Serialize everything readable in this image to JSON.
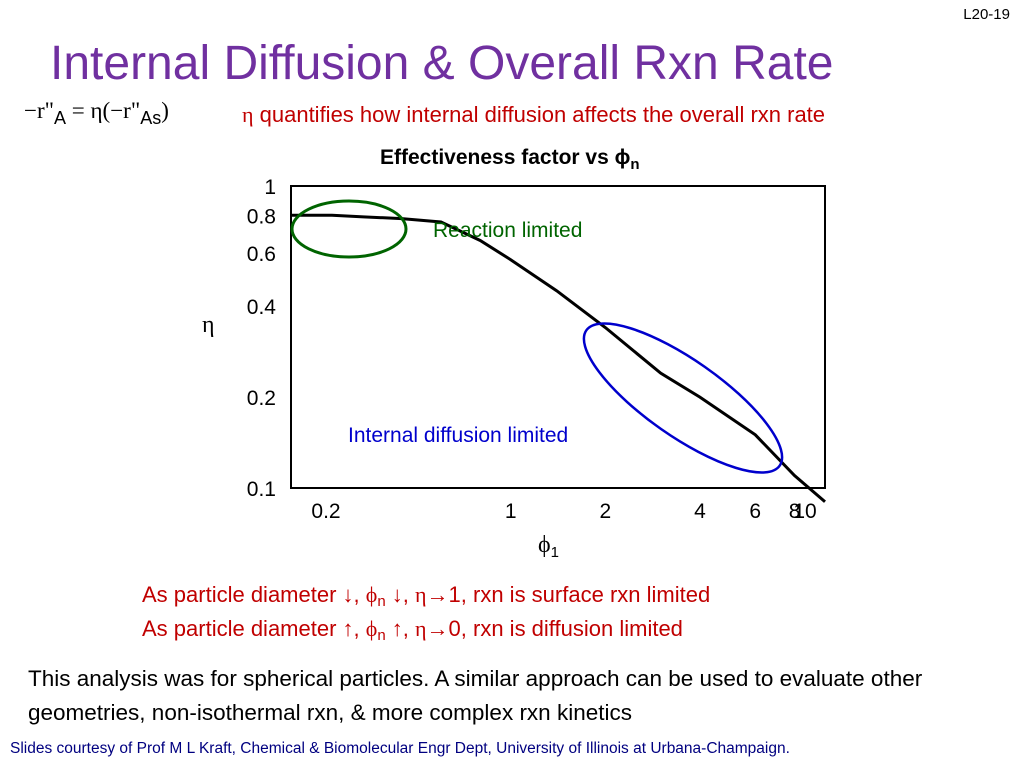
{
  "slide_number": "L20-19",
  "title": "Internal Diffusion & Overall Rxn Rate",
  "equation": {
    "lhs": "−r\"",
    "lhs_sub": "A",
    "rhs": "= η(−r\"",
    "rhs_sub": "As",
    "rhs_close": ")"
  },
  "equation_description": {
    "symbol": "η",
    "text": " quantifies how internal diffusion affects the overall rxn rate"
  },
  "chart_data": {
    "type": "line",
    "title": "Effectiveness factor vs ϕ",
    "title_subscript": "n",
    "xlabel_symbol": "ϕ",
    "xlabel_subscript": "1",
    "ylabel": "η",
    "x_scale": "log",
    "y_scale": "log",
    "xlim": [
      0.2,
      10
    ],
    "ylim": [
      0.1,
      1
    ],
    "x_ticks": [
      {
        "value": 0.2,
        "label": "0.2"
      },
      {
        "value": 1,
        "label": "1"
      },
      {
        "value": 2,
        "label": "2"
      },
      {
        "value": 4,
        "label": "4"
      },
      {
        "value": 6,
        "label": "6"
      },
      {
        "value": 8,
        "label": "8"
      },
      {
        "value": 10,
        "label": "10"
      }
    ],
    "y_ticks": [
      {
        "value": 1,
        "label": "1"
      },
      {
        "value": 0.8,
        "label": "0.8"
      },
      {
        "value": 0.6,
        "label": "0.6"
      },
      {
        "value": 0.4,
        "label": "0.4"
      },
      {
        "value": 0.2,
        "label": "0.2"
      },
      {
        "value": 0.1,
        "label": "0.1"
      }
    ],
    "grid": false,
    "series": [
      {
        "x": [
          0.2,
          0.23,
          0.27,
          0.34,
          0.45,
          0.6,
          0.8,
          1.0,
          1.4,
          2.0,
          3.0,
          4.0,
          6.0,
          8.0,
          10.0
        ],
        "y": [
          0.8,
          0.8,
          0.8,
          0.79,
          0.78,
          0.76,
          0.66,
          0.57,
          0.45,
          0.34,
          0.24,
          0.2,
          0.15,
          0.11,
          0.09
        ]
      }
    ],
    "annotations": [
      {
        "text": "Reaction limited",
        "color": "#006400"
      },
      {
        "text": "Internal diffusion limited",
        "color": "#0000cc"
      }
    ]
  },
  "notes": [
    {
      "part1": "As particle diameter ↓, ",
      "phi": "ϕ",
      "sub": "n",
      "part2": " ↓, ",
      "eta": "η",
      "part3": "→1, rxn is surface rxn limited"
    },
    {
      "part1": "As particle diameter ↑, ",
      "phi": "ϕ",
      "sub": "n",
      "part2": " ↑, ",
      "eta": "η",
      "part3": "→0, rxn is diffusion limited"
    }
  ],
  "paragraph": "This analysis was for spherical particles.  A similar approach can be used to evaluate other geometries, non-isothermal rxn, & more complex rxn kinetics",
  "footer": "Slides courtesy of Prof M L Kraft, Chemical & Biomolecular Engr Dept, University of Illinois at Urbana-Champaign.",
  "colors": {
    "title": "#7030a0",
    "highlight_text": "#c00000",
    "reaction_limited": "#006400",
    "diffusion_limited": "#0000cc",
    "footer": "#000080"
  }
}
